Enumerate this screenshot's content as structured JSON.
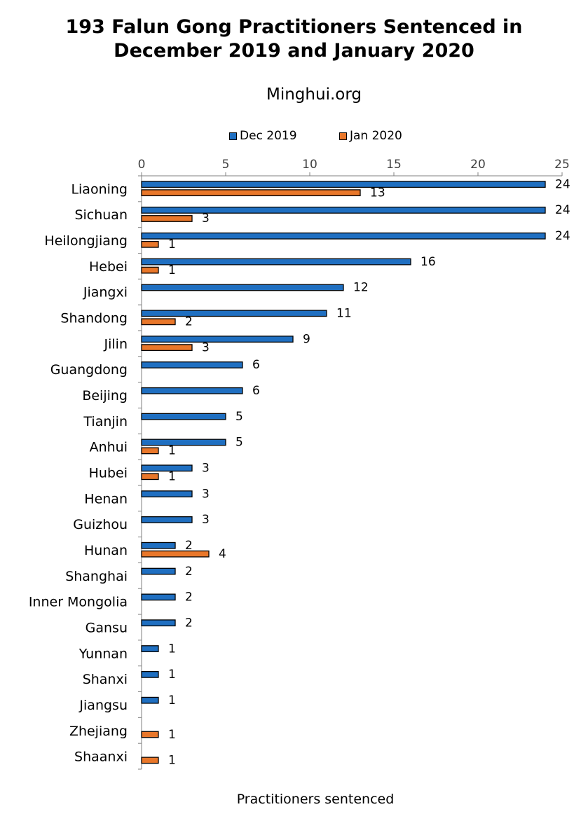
{
  "title_line1": "193 Falun Gong Practitioners Sentenced in",
  "title_line2": "December 2019 and January 2020",
  "subtitle": "Minghui.org",
  "colors": {
    "dec": "#1f6fc1",
    "jan": "#e9772a",
    "axis": "#808080"
  },
  "chart_data": {
    "type": "bar",
    "orientation": "horizontal",
    "title": "193 Falun Gong Practitioners Sentenced in December 2019 and January 2020",
    "subtitle": "Minghui.org",
    "xlabel": "Practitioners sentenced",
    "ylabel": "",
    "xlim": [
      0,
      25
    ],
    "x_ticks": [
      0,
      5,
      10,
      15,
      20,
      25
    ],
    "legend_position": "top",
    "categories": [
      "Liaoning",
      "Sichuan",
      "Heilongjiang",
      "Hebei",
      "Jiangxi",
      "Shandong",
      "Jilin",
      "Guangdong",
      "Beijing",
      "Tianjin",
      "Anhui",
      "Hubei",
      "Henan",
      "Guizhou",
      "Hunan",
      "Shanghai",
      "Inner Mongolia",
      "Gansu",
      "Yunnan",
      "Shanxi",
      "Jiangsu",
      "Zhejiang",
      "Shaanxi"
    ],
    "series": [
      {
        "name": "Dec 2019",
        "values": [
          24,
          24,
          24,
          16,
          12,
          11,
          9,
          6,
          6,
          5,
          5,
          3,
          3,
          3,
          2,
          2,
          2,
          2,
          1,
          1,
          1,
          0,
          0
        ]
      },
      {
        "name": "Jan 2020",
        "values": [
          13,
          3,
          1,
          1,
          0,
          2,
          3,
          0,
          0,
          0,
          1,
          1,
          0,
          0,
          4,
          0,
          0,
          0,
          0,
          0,
          0,
          1,
          1
        ]
      }
    ]
  }
}
